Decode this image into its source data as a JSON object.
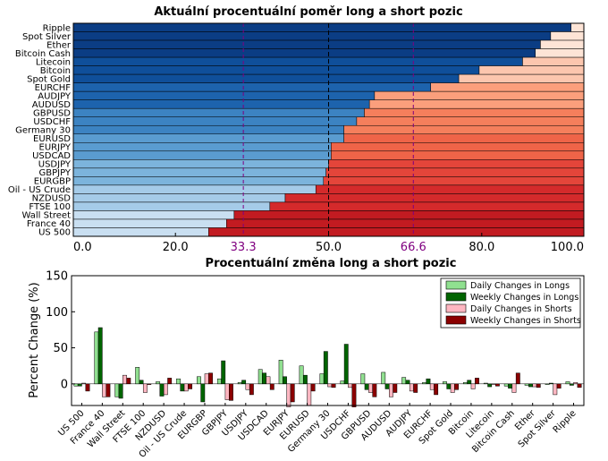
{
  "colors": {
    "long_shades": [
      "#0b3d84",
      "#0f4f9a",
      "#1d63ad",
      "#3c83c2",
      "#5a9cd0",
      "#7cb4dc",
      "#a5cbe8",
      "#c9dff1"
    ],
    "short_shades": [
      "#fde4d6",
      "#fcc6ae",
      "#fb9f7c",
      "#f57f5c",
      "#ef6448",
      "#e4453a",
      "#d42a2b",
      "#c21b21"
    ],
    "daily_long": "#90e090",
    "weekly_long": "#006400",
    "daily_short": "#ffb6c1",
    "weekly_short": "#8b0000",
    "marker_line": "#800080"
  },
  "chart_data": [
    {
      "type": "bar",
      "orientation": "horizontal-stacked",
      "title": "Aktuální procentuální poměr long a short pozic",
      "categories": [
        "Ripple",
        "Spot Silver",
        "Ether",
        "Bitcoin Cash",
        "Litecoin",
        "Bitcoin",
        "Spot Gold",
        "EURCHF",
        "AUDJPY",
        "AUDUSD",
        "GBPUSD",
        "USDCHF",
        "Germany 30",
        "EURUSD",
        "EURJPY",
        "USDCAD",
        "USDJPY",
        "GBPJPY",
        "EURGBP",
        "Oil - US Crude",
        "NZDUSD",
        "FTSE 100",
        "Wall Street",
        "France 40",
        "US 500"
      ],
      "long_values": [
        97.5,
        93.5,
        91.5,
        90.5,
        88,
        79.5,
        75.5,
        70,
        59,
        58,
        57,
        55.5,
        53,
        53,
        50.5,
        50.5,
        50,
        49.5,
        49,
        47.5,
        41.5,
        38.5,
        31.5,
        30,
        26.5
      ],
      "xlim": [
        0,
        100
      ],
      "xticks": [
        0,
        20,
        50,
        80,
        100
      ],
      "xtick_labels": [
        "0.0",
        "20.0",
        "50.0",
        "80.0",
        "100.0"
      ],
      "marker_ticks": [
        33.3,
        66.6
      ],
      "marker_tick_labels": [
        "33.3",
        "66.6"
      ],
      "center_line": 50
    },
    {
      "type": "bar",
      "orientation": "grouped",
      "title": "Procentuální změna long a short pozic",
      "ylabel": "Percent Change (%)",
      "ylim": [
        -30,
        150
      ],
      "yticks": [
        0,
        50,
        100,
        150
      ],
      "categories": [
        "US 500",
        "France 40",
        "Wall Street",
        "FTSE 100",
        "NZDUSD",
        "Oil - US Crude",
        "EURGBP",
        "GBPJPY",
        "USDJPY",
        "USDCAD",
        "EURJPY",
        "EURUSD",
        "Germany 30",
        "USDCHF",
        "GBPUSD",
        "AUDUSD",
        "AUDJPY",
        "EURCHF",
        "Spot Gold",
        "Bitcoin",
        "Litecoin",
        "Bitcoin Cash",
        "Ether",
        "Spot Silver",
        "Ripple"
      ],
      "series": [
        {
          "name": "Daily Changes in Longs",
          "values": [
            -3,
            72,
            -18,
            23,
            3,
            7,
            10,
            7,
            2,
            20,
            33,
            25,
            14,
            4,
            14,
            16,
            9,
            2,
            3,
            2,
            1,
            -3,
            -2,
            0,
            3
          ]
        },
        {
          "name": "Weekly Changes in Longs",
          "values": [
            -3,
            78,
            -20,
            5,
            -17,
            -10,
            -25,
            32,
            5,
            15,
            10,
            12,
            45,
            55,
            -8,
            -7,
            5,
            7,
            -7,
            5,
            -4,
            -6,
            -4,
            1,
            -2
          ]
        },
        {
          "name": "Daily Changes in Shorts",
          "values": [
            1,
            -18,
            12,
            -12,
            -15,
            -10,
            14,
            -22,
            -8,
            10,
            -32,
            -30,
            -4,
            -5,
            -12,
            -18,
            -10,
            -8,
            -12,
            -7,
            -1,
            -12,
            -4,
            -15,
            2
          ]
        },
        {
          "name": "Weekly Changes in Shorts",
          "values": [
            -10,
            -18,
            8,
            0,
            8,
            -7,
            15,
            -23,
            -15,
            -8,
            -25,
            -10,
            -5,
            -32,
            -18,
            -12,
            -12,
            -15,
            -8,
            8,
            -3,
            15,
            -5,
            -6,
            -5
          ]
        }
      ],
      "legend_position": "top-right"
    }
  ]
}
